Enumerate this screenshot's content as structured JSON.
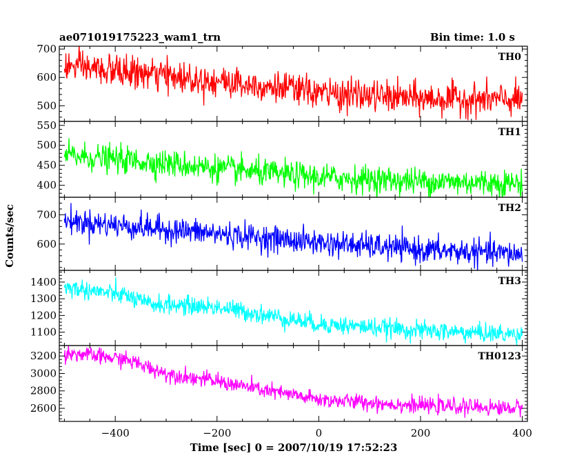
{
  "chart_data": {
    "type": "line",
    "title": "ae071019175223_wam1_trn",
    "bin_time": "Bin time: 1.0 s",
    "xlabel": "Time [sec] 0 = 2007/10/19 17:52:23",
    "ylabel": "Counts/sec",
    "xlim": [
      -510,
      410
    ],
    "x_ticks": [
      -400,
      -200,
      0,
      200,
      400
    ],
    "x_ticks_labeled": [
      -400,
      -200,
      0,
      200,
      400
    ],
    "x_sampling": {
      "start": -500,
      "end": 400,
      "step": 1
    },
    "panels": [
      {
        "name": "TH0",
        "color": "#ff0000",
        "ylim": [
          445,
          710
        ],
        "y_ticks": [
          500,
          600,
          700
        ],
        "y_tick_labels": [
          "500",
          "600",
          "700"
        ],
        "trend": [
          [
            -500,
            640
          ],
          [
            -300,
            605
          ],
          [
            -100,
            570
          ],
          [
            0,
            545
          ],
          [
            200,
            525
          ],
          [
            400,
            520
          ]
        ],
        "noise": 28
      },
      {
        "name": "TH1",
        "color": "#00ff00",
        "ylim": [
          370,
          560
        ],
        "y_ticks": [
          400,
          450,
          500,
          550
        ],
        "y_tick_labels": [
          "400",
          "450",
          "500",
          "550"
        ],
        "trend": [
          [
            -500,
            475
          ],
          [
            -300,
            455
          ],
          [
            -100,
            430
          ],
          [
            0,
            420
          ],
          [
            200,
            410
          ],
          [
            400,
            405
          ]
        ],
        "noise": 17
      },
      {
        "name": "TH2",
        "color": "#0000ff",
        "ylim": [
          510,
          760
        ],
        "y_ticks": [
          600,
          700
        ],
        "y_tick_labels": [
          "600",
          "700"
        ],
        "trend": [
          [
            -500,
            680
          ],
          [
            -300,
            650
          ],
          [
            -100,
            620
          ],
          [
            0,
            605
          ],
          [
            200,
            580
          ],
          [
            400,
            565
          ]
        ],
        "noise": 22
      },
      {
        "name": "TH3",
        "color": "#00ffff",
        "ylim": [
          1020,
          1470
        ],
        "y_ticks": [
          1100,
          1200,
          1300,
          1400
        ],
        "y_tick_labels": [
          "1100",
          "1200",
          "1300",
          "1400"
        ],
        "trend": [
          [
            -500,
            1370
          ],
          [
            -380,
            1320
          ],
          [
            -340,
            1270
          ],
          [
            -200,
            1250
          ],
          [
            -100,
            1200
          ],
          [
            0,
            1150
          ],
          [
            200,
            1110
          ],
          [
            400,
            1085
          ]
        ],
        "noise": 28
      },
      {
        "name": "TH0123",
        "color": "#ff00ff",
        "ylim": [
          2450,
          3320
        ],
        "y_ticks": [
          2600,
          2800,
          3000,
          3200
        ],
        "y_tick_labels": [
          "2600",
          "2800",
          "3000",
          "3200"
        ],
        "trend": [
          [
            -500,
            3240
          ],
          [
            -380,
            3160
          ],
          [
            -300,
            3000
          ],
          [
            -200,
            2910
          ],
          [
            -100,
            2800
          ],
          [
            0,
            2700
          ],
          [
            200,
            2630
          ],
          [
            400,
            2600
          ]
        ],
        "noise": 45
      }
    ]
  }
}
